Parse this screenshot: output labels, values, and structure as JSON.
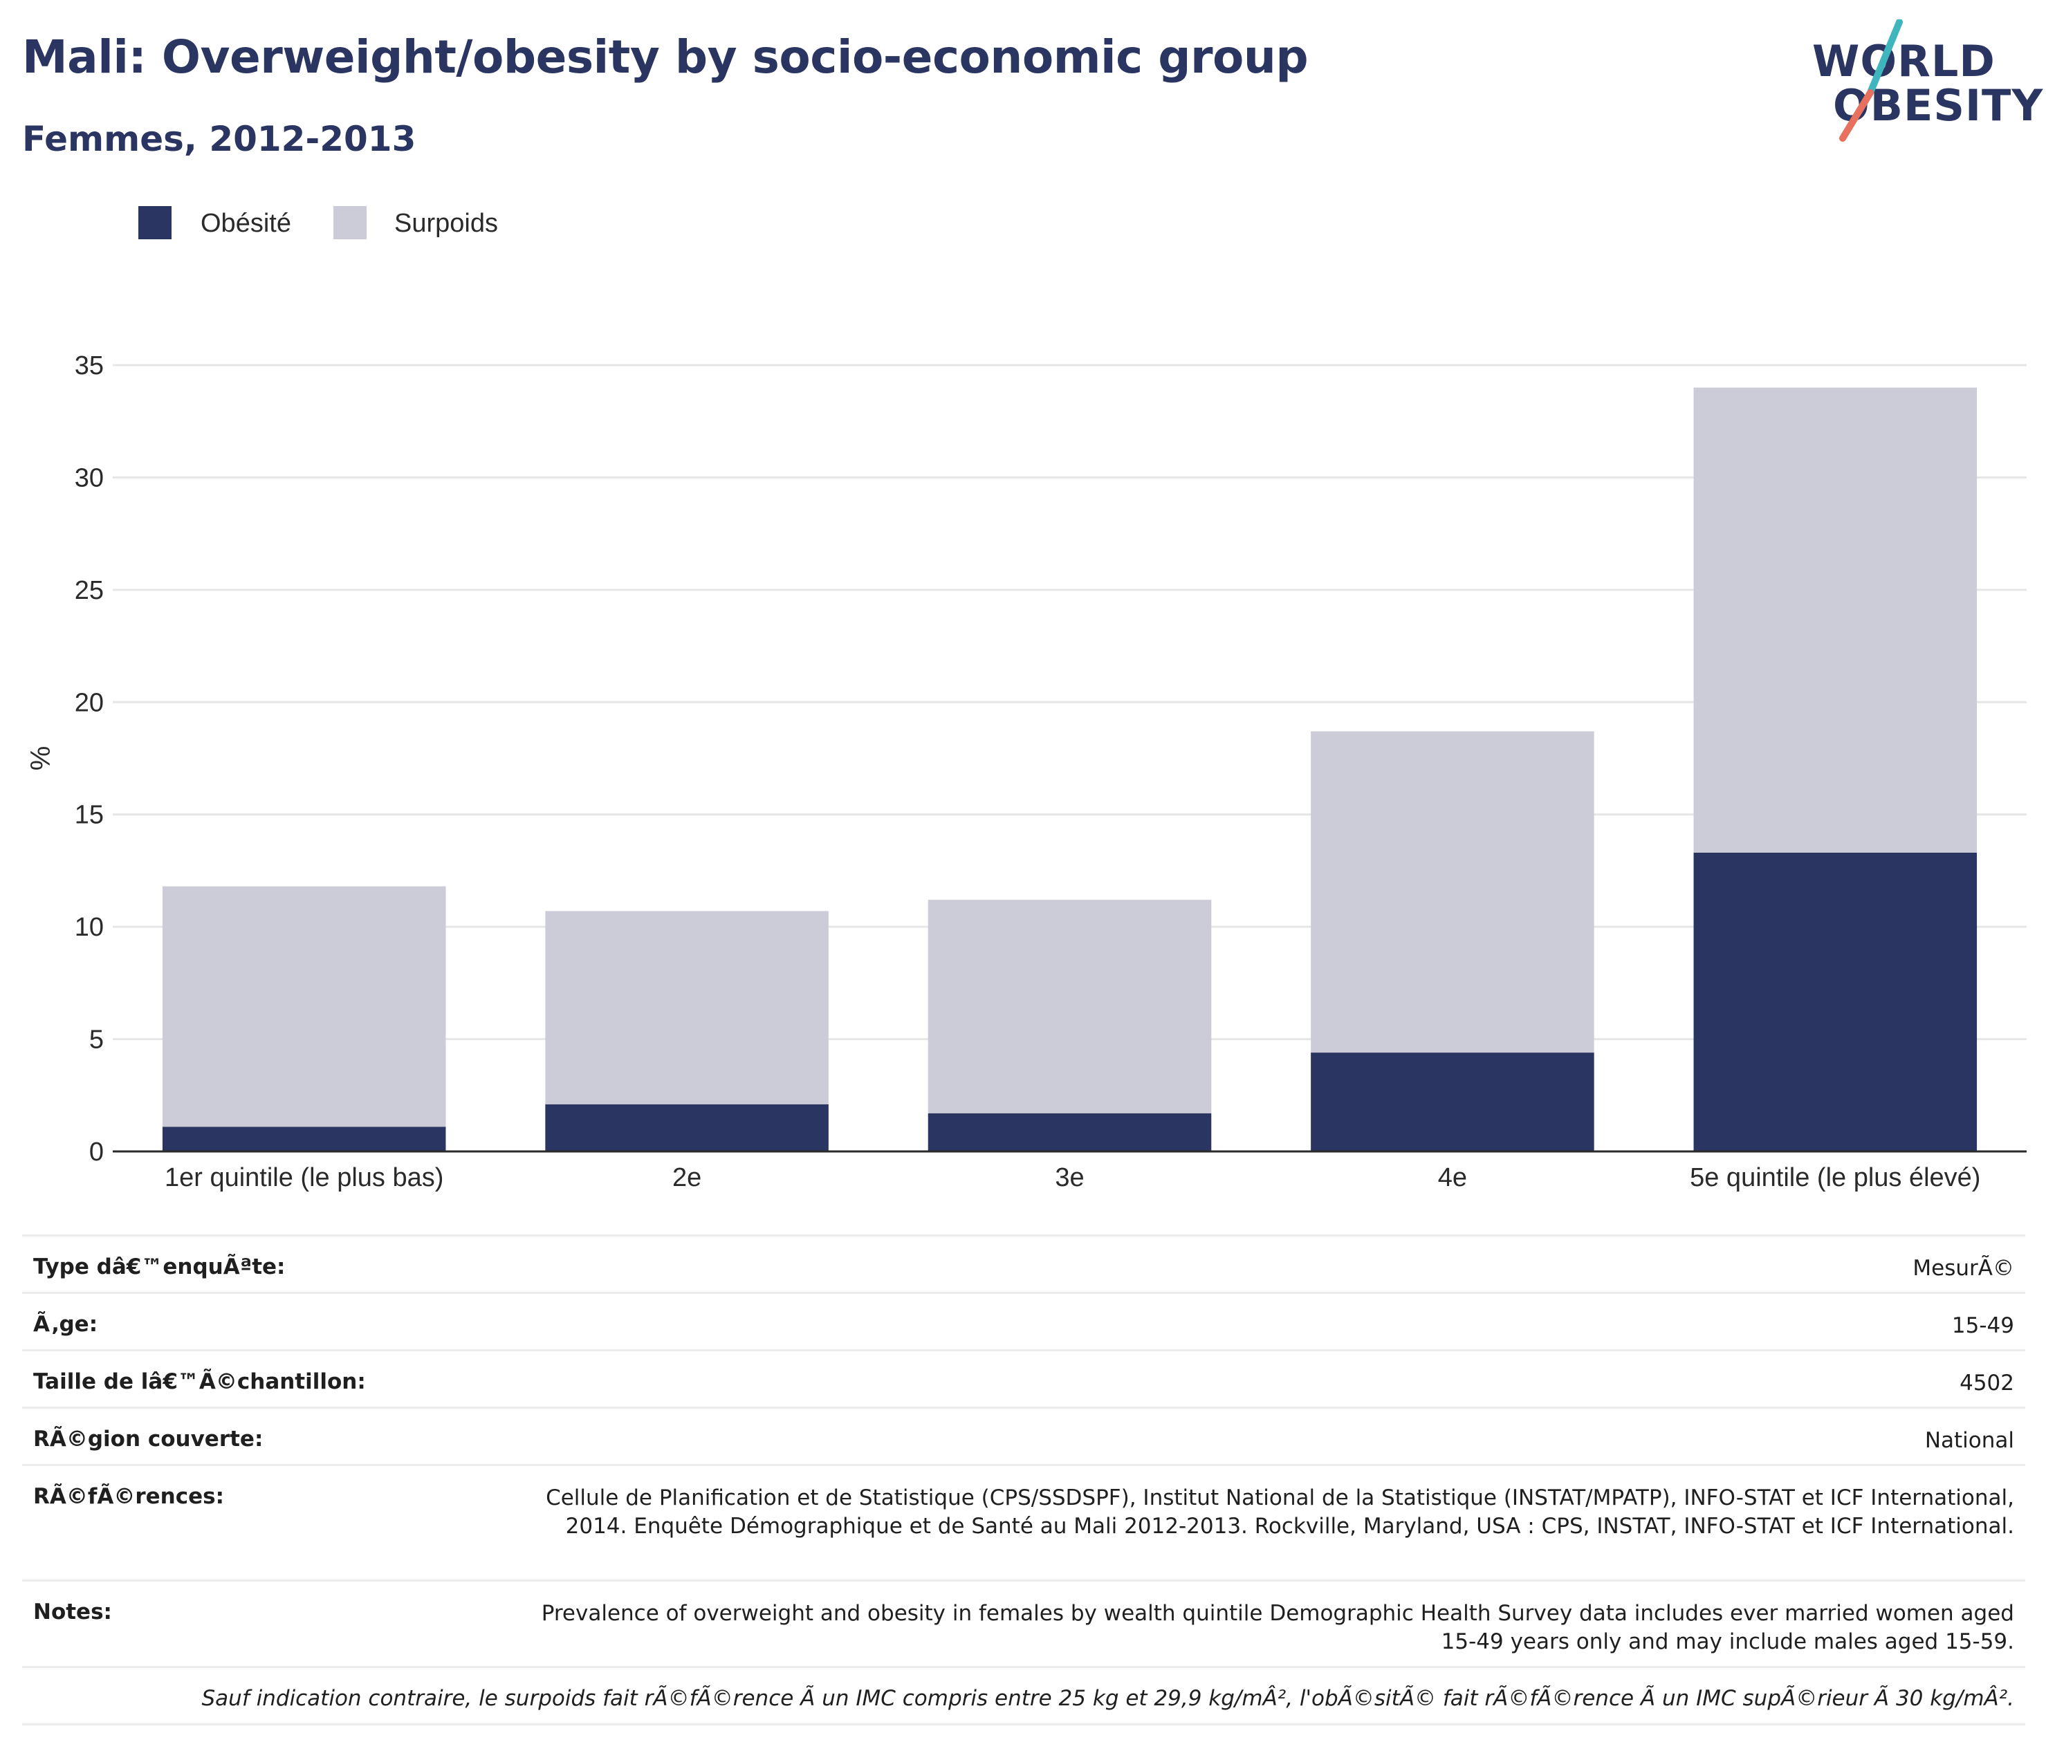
{
  "header": {
    "title": "Mali: Overweight/obesity by socio-economic group",
    "subtitle": "Femmes, 2012-2013"
  },
  "logo": {
    "line1": "WORLD",
    "line2": "OBESITY",
    "accent_teal": "#3fb6bd",
    "accent_coral": "#e8705f"
  },
  "colors": {
    "obesity": "#2a3561",
    "overweight": "#cbccd8",
    "grid": "#e6e6e6",
    "axis": "#2a2a2a"
  },
  "chart_data": {
    "type": "bar",
    "stacked": true,
    "categories": [
      "1er quintile (le plus bas)",
      "2e",
      "3e",
      "4e",
      "5e quintile (le plus élevé)"
    ],
    "series": [
      {
        "name": "Obésité",
        "values": [
          1.1,
          2.1,
          1.7,
          4.4,
          13.3
        ]
      },
      {
        "name": "Surpoids",
        "values": [
          10.7,
          8.6,
          9.5,
          14.3,
          20.7
        ]
      }
    ],
    "title": "Mali: Overweight/obesity by socio-economic group",
    "subtitle": "Femmes, 2012-2013",
    "xlabel": "",
    "ylabel": "%",
    "ylim": [
      0,
      35
    ],
    "yticks": [
      0,
      5,
      10,
      15,
      20,
      25,
      30,
      35
    ],
    "grid": true,
    "legend_position": "top-left"
  },
  "info": [
    {
      "key": "Type dâ€™enquÃªte:",
      "value": "MesurÃ©"
    },
    {
      "key": "Ã‚ge:",
      "value": "15-49"
    },
    {
      "key": "Taille de lâ€™Ã©chantillon:",
      "value": "4502"
    },
    {
      "key": "RÃ©gion couverte:",
      "value": "National"
    },
    {
      "key": "RÃ©fÃ©rences:",
      "value": "Cellule de Planification et de Statistique (CPS/SSDSPF), Institut National de la Statistique (INSTAT/MPATP), INFO-STAT et ICF International, 2014. Enquête Démographique et de Santé au Mali 2012-2013. Rockville, Maryland, USA : CPS, INSTAT, INFO-STAT et ICF International."
    },
    {
      "key": "Notes:",
      "value": "Prevalence of overweight and obesity in females by wealth quintile Demographic Health Survey data includes ever married women aged 15-49 years only and may include males aged 15-59."
    }
  ],
  "footnote": "Sauf indication contraire, le surpoids fait rÃ©fÃ©rence Ã  un IMC compris entre 25 kg et 29,9 kg/mÂ², l'obÃ©sitÃ© fait rÃ©fÃ©rence Ã  un IMC supÃ©rieur Ã  30 kg/mÂ²."
}
